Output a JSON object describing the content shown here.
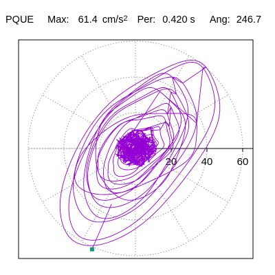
{
  "header": {
    "station": "PQUE",
    "max_label": "Max:",
    "max_value": "61.4",
    "max_unit": "cm/s",
    "max_unit_exp": "2",
    "per_label": "Per:",
    "per_value": "0.420 s",
    "ang_label": "Ang:",
    "ang_value": "246.7"
  },
  "colors": {
    "trace": "#9400d3",
    "grid": "#8c8c8c",
    "axis": "#000000",
    "endpoint": "#159b75"
  },
  "chart_data": {
    "type": "polar-trace",
    "title": "",
    "radial_axis": {
      "range": [
        0,
        65
      ],
      "ticks": [
        20,
        40,
        60
      ],
      "tick_labels": [
        "20",
        "40",
        "60"
      ]
    },
    "grid": {
      "circles": [
        20,
        40,
        60
      ],
      "spokes_deg": [
        0,
        30,
        60,
        90,
        120,
        150,
        180,
        210,
        240,
        270,
        300,
        330
      ],
      "style": "dotted"
    },
    "max_amplitude": 61.4,
    "max_angle_deg": 246.7,
    "endpoint_marker": {
      "r": 61.4,
      "angle_deg": 246.7
    }
  }
}
